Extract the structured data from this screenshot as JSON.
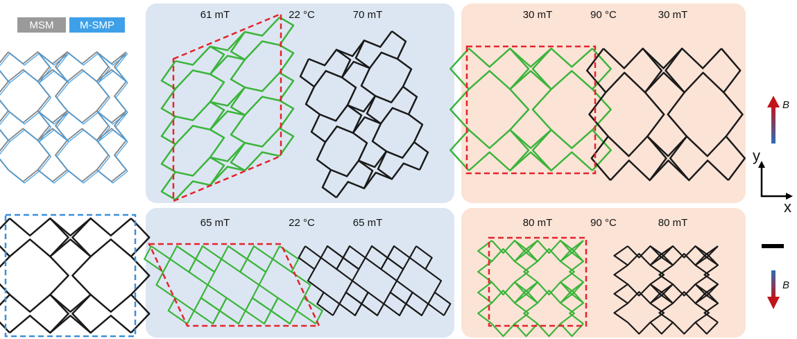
{
  "legend": {
    "msm": "MSM",
    "msmp": "M-SMP"
  },
  "panels": [
    {
      "left_field": "61 mT",
      "temperature": "22 °C",
      "right_field": "70 mT"
    },
    {
      "left_field": "30 mT",
      "temperature": "90 °C",
      "right_field": "30 mT"
    },
    {
      "left_field": "65 mT",
      "temperature": "22 °C",
      "right_field": "65 mT"
    },
    {
      "left_field": "80 mT",
      "temperature": "90 °C",
      "right_field": "80 mT"
    }
  ],
  "field_arrows": {
    "up": "B",
    "down": "B"
  },
  "axes": {
    "y": "y",
    "x": "x"
  }
}
